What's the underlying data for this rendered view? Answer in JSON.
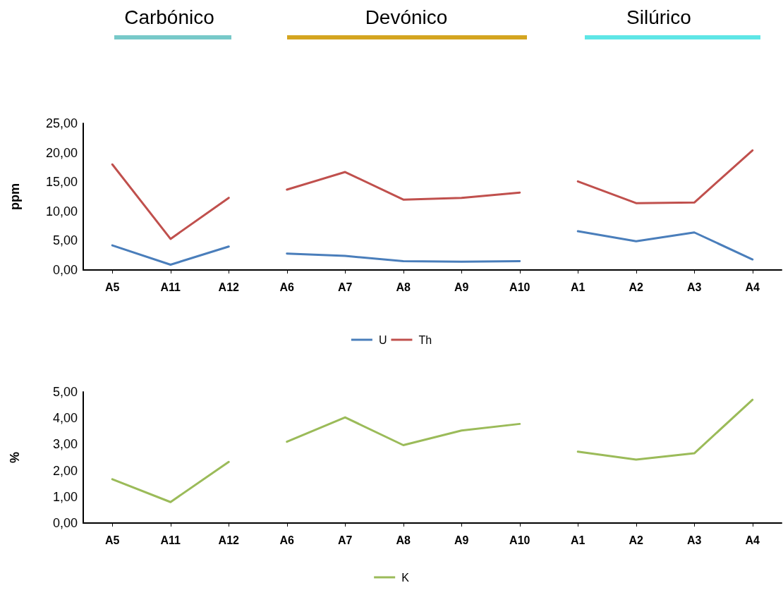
{
  "chart_data": [
    {
      "type": "line",
      "ylabel": "ppm",
      "categories": [
        "A5",
        "A11",
        "A12",
        "A6",
        "A7",
        "A8",
        "A9",
        "A10",
        "A1",
        "A2",
        "A3",
        "A4"
      ],
      "series": [
        {
          "name": "U",
          "color": "#4a7ebb",
          "values": [
            4.2,
            0.9,
            4.0,
            null,
            null,
            null,
            null,
            null,
            null,
            null,
            null,
            null
          ]
        },
        {
          "color": "#4a7ebb",
          "values": [
            null,
            null,
            null,
            2.8,
            2.4,
            1.5,
            1.4,
            1.5,
            null,
            null,
            null,
            null
          ]
        },
        {
          "color": "#4a7ebb",
          "values": [
            null,
            null,
            null,
            null,
            null,
            null,
            null,
            null,
            6.6,
            4.9,
            6.4,
            1.8
          ]
        },
        {
          "name": "Th",
          "color": "#c0504d",
          "values": [
            18.0,
            5.3,
            12.3,
            null,
            null,
            null,
            null,
            null,
            null,
            null,
            null,
            null
          ]
        },
        {
          "color": "#c0504d",
          "values": [
            null,
            null,
            null,
            13.7,
            16.7,
            12.0,
            12.3,
            13.2,
            null,
            null,
            null,
            null
          ]
        },
        {
          "color": "#c0504d",
          "values": [
            null,
            null,
            null,
            null,
            null,
            null,
            null,
            null,
            15.1,
            11.4,
            11.5,
            20.4
          ]
        }
      ],
      "ylim": [
        0,
        25
      ],
      "yticks": [
        {
          "value": 0,
          "label": "0,00"
        },
        {
          "value": 5,
          "label": "5,00"
        },
        {
          "value": 10,
          "label": "10,00"
        },
        {
          "value": 15,
          "label": "15,00"
        },
        {
          "value": 20,
          "label": "20,00"
        },
        {
          "value": 25,
          "label": "25,00"
        }
      ],
      "annotations": [
        "Carbónico",
        "Devónico",
        "Silúrico"
      ],
      "grid": false,
      "legend": "bottom",
      "line_style": "solid",
      "marker": "none"
    },
    {
      "type": "line",
      "ylabel": "%",
      "categories": [
        "A5",
        "A11",
        "A12",
        "A6",
        "A7",
        "A8",
        "A9",
        "A10",
        "A1",
        "A2",
        "A3",
        "A4"
      ],
      "series": [
        {
          "name": "K",
          "color": "#9bbb59",
          "values": [
            1.67,
            0.8,
            2.33,
            null,
            null,
            null,
            null,
            null,
            null,
            null,
            null,
            null
          ]
        },
        {
          "color": "#9bbb59",
          "values": [
            null,
            null,
            null,
            3.1,
            4.03,
            2.97,
            3.53,
            3.78,
            null,
            null,
            null,
            null
          ]
        },
        {
          "color": "#9bbb59",
          "values": [
            null,
            null,
            null,
            null,
            null,
            null,
            null,
            null,
            2.72,
            2.42,
            2.66,
            4.7
          ]
        }
      ],
      "ylim": [
        0,
        5
      ],
      "yticks": [
        {
          "value": 0,
          "label": "0,00"
        },
        {
          "value": 1,
          "label": "1,00"
        },
        {
          "value": 2,
          "label": "2,00"
        },
        {
          "value": 3,
          "label": "3,00"
        },
        {
          "value": 4,
          "label": "4,00"
        },
        {
          "value": 5,
          "label": "5,00"
        }
      ],
      "grid": false,
      "legend": "bottom",
      "line_style": "solid",
      "marker": "none"
    }
  ]
}
